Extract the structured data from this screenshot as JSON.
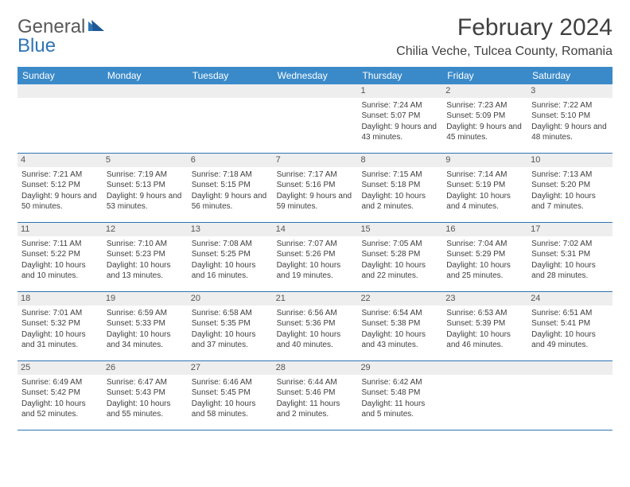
{
  "logo": {
    "general": "General",
    "blue": "Blue"
  },
  "header": {
    "month_title": "February 2024",
    "location": "Chilia Veche, Tulcea County, Romania"
  },
  "colors": {
    "header_bar": "#3a8ac9",
    "grid_line": "#2e74b5",
    "day_strip": "#eeeeee",
    "text": "#404040",
    "logo_gray": "#595959",
    "logo_blue": "#2e74b5"
  },
  "days_of_week": [
    "Sunday",
    "Monday",
    "Tuesday",
    "Wednesday",
    "Thursday",
    "Friday",
    "Saturday"
  ],
  "weeks": [
    [
      {
        "n": "",
        "lines": []
      },
      {
        "n": "",
        "lines": []
      },
      {
        "n": "",
        "lines": []
      },
      {
        "n": "",
        "lines": []
      },
      {
        "n": "1",
        "lines": [
          "Sunrise: 7:24 AM",
          "Sunset: 5:07 PM",
          "Daylight: 9 hours and 43 minutes."
        ]
      },
      {
        "n": "2",
        "lines": [
          "Sunrise: 7:23 AM",
          "Sunset: 5:09 PM",
          "Daylight: 9 hours and 45 minutes."
        ]
      },
      {
        "n": "3",
        "lines": [
          "Sunrise: 7:22 AM",
          "Sunset: 5:10 PM",
          "Daylight: 9 hours and 48 minutes."
        ]
      }
    ],
    [
      {
        "n": "4",
        "lines": [
          "Sunrise: 7:21 AM",
          "Sunset: 5:12 PM",
          "Daylight: 9 hours and 50 minutes."
        ]
      },
      {
        "n": "5",
        "lines": [
          "Sunrise: 7:19 AM",
          "Sunset: 5:13 PM",
          "Daylight: 9 hours and 53 minutes."
        ]
      },
      {
        "n": "6",
        "lines": [
          "Sunrise: 7:18 AM",
          "Sunset: 5:15 PM",
          "Daylight: 9 hours and 56 minutes."
        ]
      },
      {
        "n": "7",
        "lines": [
          "Sunrise: 7:17 AM",
          "Sunset: 5:16 PM",
          "Daylight: 9 hours and 59 minutes."
        ]
      },
      {
        "n": "8",
        "lines": [
          "Sunrise: 7:15 AM",
          "Sunset: 5:18 PM",
          "Daylight: 10 hours and 2 minutes."
        ]
      },
      {
        "n": "9",
        "lines": [
          "Sunrise: 7:14 AM",
          "Sunset: 5:19 PM",
          "Daylight: 10 hours and 4 minutes."
        ]
      },
      {
        "n": "10",
        "lines": [
          "Sunrise: 7:13 AM",
          "Sunset: 5:20 PM",
          "Daylight: 10 hours and 7 minutes."
        ]
      }
    ],
    [
      {
        "n": "11",
        "lines": [
          "Sunrise: 7:11 AM",
          "Sunset: 5:22 PM",
          "Daylight: 10 hours and 10 minutes."
        ]
      },
      {
        "n": "12",
        "lines": [
          "Sunrise: 7:10 AM",
          "Sunset: 5:23 PM",
          "Daylight: 10 hours and 13 minutes."
        ]
      },
      {
        "n": "13",
        "lines": [
          "Sunrise: 7:08 AM",
          "Sunset: 5:25 PM",
          "Daylight: 10 hours and 16 minutes."
        ]
      },
      {
        "n": "14",
        "lines": [
          "Sunrise: 7:07 AM",
          "Sunset: 5:26 PM",
          "Daylight: 10 hours and 19 minutes."
        ]
      },
      {
        "n": "15",
        "lines": [
          "Sunrise: 7:05 AM",
          "Sunset: 5:28 PM",
          "Daylight: 10 hours and 22 minutes."
        ]
      },
      {
        "n": "16",
        "lines": [
          "Sunrise: 7:04 AM",
          "Sunset: 5:29 PM",
          "Daylight: 10 hours and 25 minutes."
        ]
      },
      {
        "n": "17",
        "lines": [
          "Sunrise: 7:02 AM",
          "Sunset: 5:31 PM",
          "Daylight: 10 hours and 28 minutes."
        ]
      }
    ],
    [
      {
        "n": "18",
        "lines": [
          "Sunrise: 7:01 AM",
          "Sunset: 5:32 PM",
          "Daylight: 10 hours and 31 minutes."
        ]
      },
      {
        "n": "19",
        "lines": [
          "Sunrise: 6:59 AM",
          "Sunset: 5:33 PM",
          "Daylight: 10 hours and 34 minutes."
        ]
      },
      {
        "n": "20",
        "lines": [
          "Sunrise: 6:58 AM",
          "Sunset: 5:35 PM",
          "Daylight: 10 hours and 37 minutes."
        ]
      },
      {
        "n": "21",
        "lines": [
          "Sunrise: 6:56 AM",
          "Sunset: 5:36 PM",
          "Daylight: 10 hours and 40 minutes."
        ]
      },
      {
        "n": "22",
        "lines": [
          "Sunrise: 6:54 AM",
          "Sunset: 5:38 PM",
          "Daylight: 10 hours and 43 minutes."
        ]
      },
      {
        "n": "23",
        "lines": [
          "Sunrise: 6:53 AM",
          "Sunset: 5:39 PM",
          "Daylight: 10 hours and 46 minutes."
        ]
      },
      {
        "n": "24",
        "lines": [
          "Sunrise: 6:51 AM",
          "Sunset: 5:41 PM",
          "Daylight: 10 hours and 49 minutes."
        ]
      }
    ],
    [
      {
        "n": "25",
        "lines": [
          "Sunrise: 6:49 AM",
          "Sunset: 5:42 PM",
          "Daylight: 10 hours and 52 minutes."
        ]
      },
      {
        "n": "26",
        "lines": [
          "Sunrise: 6:47 AM",
          "Sunset: 5:43 PM",
          "Daylight: 10 hours and 55 minutes."
        ]
      },
      {
        "n": "27",
        "lines": [
          "Sunrise: 6:46 AM",
          "Sunset: 5:45 PM",
          "Daylight: 10 hours and 58 minutes."
        ]
      },
      {
        "n": "28",
        "lines": [
          "Sunrise: 6:44 AM",
          "Sunset: 5:46 PM",
          "Daylight: 11 hours and 2 minutes."
        ]
      },
      {
        "n": "29",
        "lines": [
          "Sunrise: 6:42 AM",
          "Sunset: 5:48 PM",
          "Daylight: 11 hours and 5 minutes."
        ]
      },
      {
        "n": "",
        "lines": []
      },
      {
        "n": "",
        "lines": []
      }
    ]
  ]
}
